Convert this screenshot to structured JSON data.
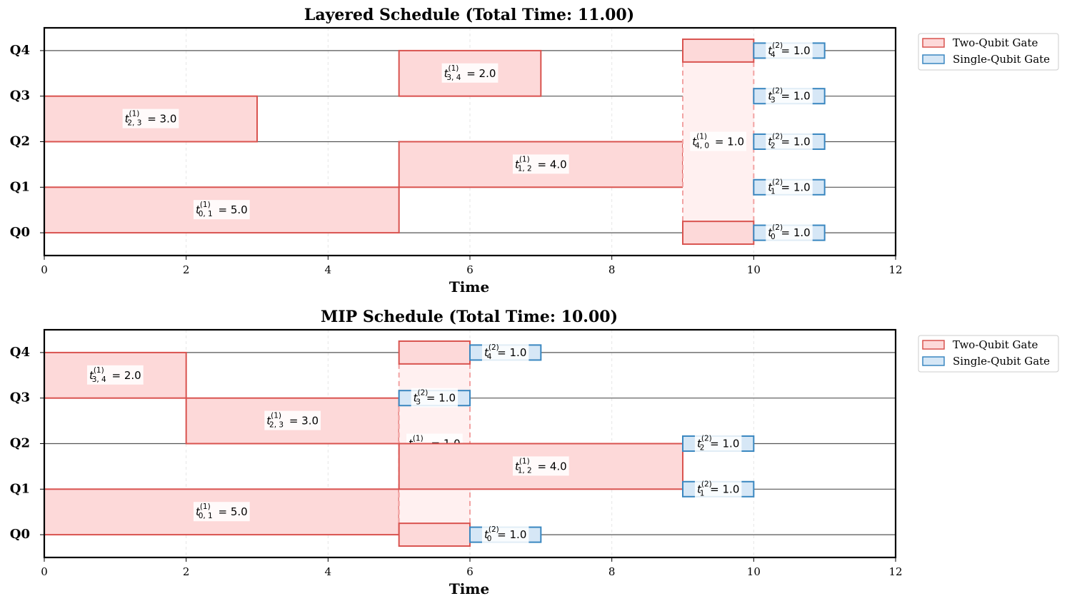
{
  "colors": {
    "two_qubit_fill": "#fdd9d9",
    "two_qubit_edge": "#d9534f",
    "single_qubit_fill": "#d6e7f6",
    "single_qubit_edge": "#3a87c0",
    "qubit_line": "#555555",
    "vertical_link": "#f2a2a2",
    "vertical_link_fill": "#fff0f0"
  },
  "legend": {
    "two_qubit": "Two-Qubit Gate",
    "single_qubit": "Single-Qubit Gate",
    "placement": "outside-upper-right"
  },
  "chart_data": [
    {
      "type": "gantt",
      "title": "Layered Schedule (Total Time: 11.00)",
      "xlabel": "Time",
      "xlim": [
        0,
        12
      ],
      "xticks": [
        "0",
        "2",
        "4",
        "6",
        "8",
        "10",
        "12"
      ],
      "qubits": [
        "Q0",
        "Q1",
        "Q2",
        "Q3",
        "Q4"
      ],
      "grid": "vertical-dashed",
      "two_qubit_gates": [
        {
          "q": [
            0,
            1
          ],
          "start": 0,
          "end": 5,
          "label_var": "t",
          "label_sup": "(1)",
          "label_sub": "0, 1",
          "label_val": "= 5.0"
        },
        {
          "q": [
            2,
            3
          ],
          "start": 0,
          "end": 3,
          "label_var": "t",
          "label_sup": "(1)",
          "label_sub": "2, 3",
          "label_val": "= 3.0"
        },
        {
          "q": [
            3,
            4
          ],
          "start": 5,
          "end": 7,
          "label_var": "t",
          "label_sup": "(1)",
          "label_sub": "3, 4",
          "label_val": "= 2.0"
        },
        {
          "q": [
            1,
            2
          ],
          "start": 5,
          "end": 9,
          "label_var": "t",
          "label_sup": "(1)",
          "label_sub": "1, 2",
          "label_val": "= 4.0"
        },
        {
          "q": [
            4,
            0
          ],
          "start": 9,
          "end": 10,
          "label_var": "t",
          "label_sup": "(1)",
          "label_sub": "4, 0",
          "label_val": "= 1.0"
        }
      ],
      "single_qubit_gates": [
        {
          "q": 4,
          "start": 10,
          "end": 11,
          "label_var": "t",
          "label_sup": "(2)",
          "label_sub": "4",
          "label_val": "= 1.0"
        },
        {
          "q": 3,
          "start": 10,
          "end": 11,
          "label_var": "t",
          "label_sup": "(2)",
          "label_sub": "3",
          "label_val": "= 1.0"
        },
        {
          "q": 2,
          "start": 10,
          "end": 11,
          "label_var": "t",
          "label_sup": "(2)",
          "label_sub": "2",
          "label_val": "= 1.0"
        },
        {
          "q": 1,
          "start": 10,
          "end": 11,
          "label_var": "t",
          "label_sup": "(2)",
          "label_sub": "1",
          "label_val": "= 1.0"
        },
        {
          "q": 0,
          "start": 10,
          "end": 11,
          "label_var": "t",
          "label_sup": "(2)",
          "label_sub": "0",
          "label_val": "= 1.0"
        }
      ]
    },
    {
      "type": "gantt",
      "title": "MIP Schedule (Total Time: 10.00)",
      "xlabel": "Time",
      "xlim": [
        0,
        12
      ],
      "xticks": [
        "0",
        "2",
        "4",
        "6",
        "8",
        "10",
        "12"
      ],
      "qubits": [
        "Q0",
        "Q1",
        "Q2",
        "Q3",
        "Q4"
      ],
      "grid": "vertical-dashed",
      "two_qubit_gates": [
        {
          "q": [
            3,
            4
          ],
          "start": 0,
          "end": 2,
          "label_var": "t",
          "label_sup": "(1)",
          "label_sub": "3, 4",
          "label_val": "= 2.0"
        },
        {
          "q": [
            2,
            3
          ],
          "start": 2,
          "end": 5,
          "label_var": "t",
          "label_sup": "(1)",
          "label_sub": "2, 3",
          "label_val": "= 3.0"
        },
        {
          "q": [
            0,
            1
          ],
          "start": 0,
          "end": 5,
          "label_var": "t",
          "label_sup": "(1)",
          "label_sub": "0, 1",
          "label_val": "= 5.0"
        },
        {
          "q": [
            4,
            0
          ],
          "start": 5,
          "end": 6,
          "label_var": "t",
          "label_sup": "(1)",
          "label_sub": "4, 0",
          "label_val": "= 1.0"
        },
        {
          "q": [
            1,
            2
          ],
          "start": 5,
          "end": 9,
          "label_var": "t",
          "label_sup": "(1)",
          "label_sub": "1, 2",
          "label_val": "= 4.0"
        }
      ],
      "single_qubit_gates": [
        {
          "q": 4,
          "start": 6,
          "end": 7,
          "label_var": "t",
          "label_sup": "(2)",
          "label_sub": "4",
          "label_val": "= 1.0"
        },
        {
          "q": 3,
          "start": 5,
          "end": 6,
          "label_var": "t",
          "label_sup": "(2)",
          "label_sub": "3",
          "label_val": "= 1.0"
        },
        {
          "q": 0,
          "start": 6,
          "end": 7,
          "label_var": "t",
          "label_sup": "(2)",
          "label_sub": "0",
          "label_val": "= 1.0"
        },
        {
          "q": 2,
          "start": 9,
          "end": 10,
          "label_var": "t",
          "label_sup": "(2)",
          "label_sub": "2",
          "label_val": "= 1.0"
        },
        {
          "q": 1,
          "start": 9,
          "end": 10,
          "label_var": "t",
          "label_sup": "(2)",
          "label_sub": "1",
          "label_val": "= 1.0"
        }
      ]
    }
  ]
}
